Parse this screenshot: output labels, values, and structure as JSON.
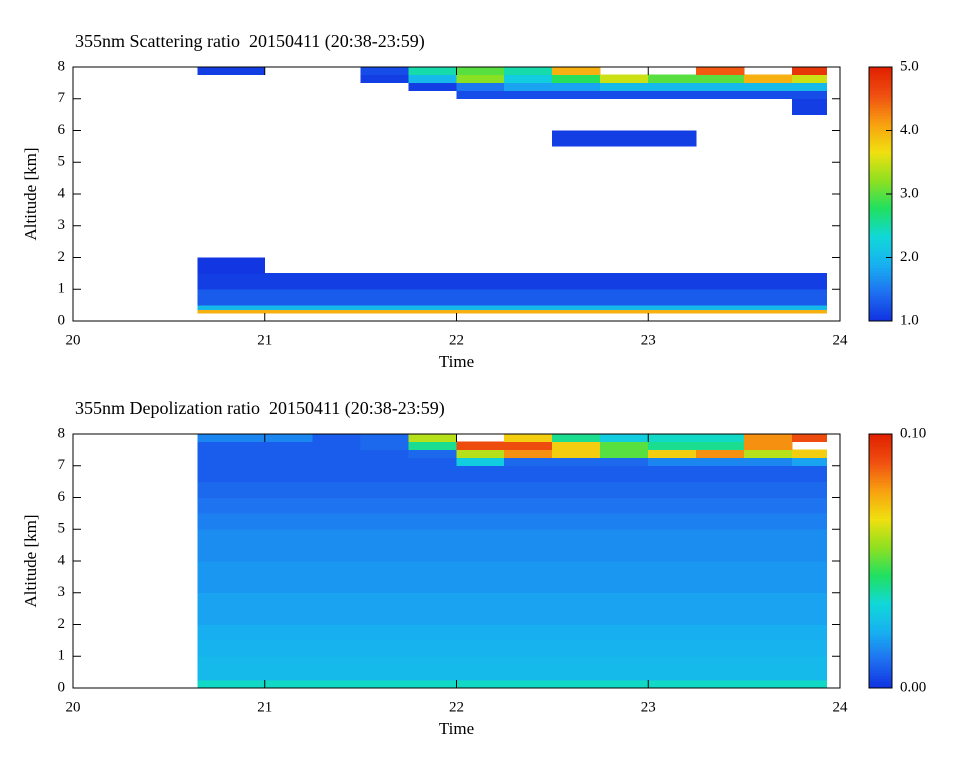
{
  "chart_data": [
    {
      "type": "heatmap",
      "title": "355nm Scattering ratio  20150411 (20:38-23:59)",
      "xlabel": "Time",
      "ylabel": "Altitude [km]",
      "x": [
        20.65,
        21,
        21.25,
        21.5,
        21.75,
        22,
        22.25,
        22.5,
        22.75,
        23,
        23.25,
        23.5,
        23.75,
        23.93
      ],
      "y": [
        0,
        0.25,
        0.35,
        0.5,
        1,
        1.5,
        2,
        3,
        4,
        5,
        5.5,
        6,
        6.5,
        7,
        7.25,
        7.5,
        7.75,
        8
      ],
      "values": [
        [
          null,
          null,
          null,
          null,
          null,
          null,
          null,
          null,
          null,
          null,
          null,
          null,
          null
        ],
        [
          4.0,
          4.0,
          4.0,
          4.0,
          4.0,
          4.0,
          4.0,
          4.0,
          4.0,
          4.0,
          4.0,
          4.0,
          4.0
        ],
        [
          2.0,
          2.0,
          2.0,
          2.0,
          2.0,
          2.0,
          2.0,
          2.0,
          2.0,
          2.0,
          2.0,
          2.0,
          2.0
        ],
        [
          1.3,
          1.3,
          1.3,
          1.3,
          1.3,
          1.3,
          1.3,
          1.3,
          1.3,
          1.3,
          1.3,
          1.3,
          1.3
        ],
        [
          1.1,
          1.1,
          1.1,
          1.1,
          1.1,
          1.1,
          1.1,
          1.1,
          1.1,
          1.1,
          1.1,
          1.1,
          1.1
        ],
        [
          1.05,
          null,
          null,
          null,
          null,
          null,
          null,
          null,
          null,
          null,
          null,
          null,
          null
        ],
        [
          null,
          null,
          null,
          null,
          null,
          null,
          null,
          null,
          null,
          null,
          null,
          null,
          null
        ],
        [
          null,
          null,
          null,
          null,
          null,
          null,
          null,
          null,
          null,
          null,
          null,
          null,
          null
        ],
        [
          null,
          null,
          null,
          null,
          null,
          null,
          null,
          null,
          null,
          null,
          null,
          null,
          null
        ],
        [
          null,
          null,
          null,
          null,
          null,
          null,
          null,
          null,
          null,
          null,
          null,
          null,
          null
        ],
        [
          null,
          null,
          null,
          null,
          null,
          null,
          null,
          1.1,
          1.1,
          1.1,
          null,
          null,
          null
        ],
        [
          null,
          null,
          null,
          null,
          null,
          null,
          null,
          null,
          null,
          null,
          null,
          null,
          null
        ],
        [
          null,
          null,
          null,
          null,
          null,
          null,
          null,
          null,
          null,
          null,
          null,
          null,
          1.1
        ],
        [
          null,
          null,
          null,
          null,
          null,
          1.2,
          1.2,
          1.2,
          1.2,
          1.2,
          1.2,
          1.2,
          1.2
        ],
        [
          null,
          null,
          null,
          null,
          1.1,
          1.5,
          1.8,
          1.8,
          2.0,
          2.0,
          2.0,
          2.0,
          2.0
        ],
        [
          null,
          null,
          null,
          1.1,
          2.0,
          3.2,
          2.2,
          2.8,
          3.5,
          3.0,
          3.0,
          4.0,
          3.5
        ],
        [
          1.1,
          null,
          null,
          1.2,
          2.5,
          3.0,
          2.5,
          4.0,
          null,
          null,
          4.5,
          null,
          4.8
        ]
      ],
      "xlim": [
        20,
        24
      ],
      "ylim": [
        0,
        8
      ],
      "xticks": [
        20,
        21,
        22,
        23,
        24
      ],
      "yticks": [
        0,
        1,
        2,
        3,
        4,
        5,
        6,
        7,
        8
      ],
      "clim": [
        1,
        5
      ],
      "colorbar_ticks": [
        {
          "value": 1,
          "label": "1.0"
        },
        {
          "value": 2,
          "label": "2.0"
        },
        {
          "value": 3,
          "label": "3.0"
        },
        {
          "value": 4,
          "label": "4.0"
        },
        {
          "value": 5,
          "label": "5.0"
        }
      ],
      "colormap": [
        "#1030e0",
        "#1e6ff0",
        "#18b0f0",
        "#10d8d8",
        "#20e060",
        "#90e020",
        "#f0e010",
        "#f8a010",
        "#f05010",
        "#e02000"
      ]
    },
    {
      "type": "heatmap",
      "title": "355nm Depolization ratio  20150411 (20:38-23:59)",
      "xlabel": "Time",
      "ylabel": "Altitude [km]",
      "x": [
        20.65,
        21,
        21.25,
        21.5,
        21.75,
        22,
        22.25,
        22.5,
        22.75,
        23,
        23.25,
        23.5,
        23.75,
        23.93
      ],
      "y": [
        0,
        0.25,
        0.35,
        0.5,
        1,
        1.5,
        2,
        3,
        4,
        5,
        5.5,
        6,
        6.5,
        7,
        7.25,
        7.5,
        7.75,
        8
      ],
      "values": [
        [
          0.035,
          0.035,
          0.035,
          0.035,
          0.035,
          0.035,
          0.035,
          0.035,
          0.035,
          0.035,
          0.035,
          0.035,
          0.035
        ],
        [
          0.025,
          0.025,
          0.025,
          0.025,
          0.025,
          0.025,
          0.025,
          0.025,
          0.025,
          0.025,
          0.025,
          0.025,
          0.025
        ],
        [
          0.025,
          0.025,
          0.025,
          0.025,
          0.025,
          0.025,
          0.025,
          0.025,
          0.025,
          0.025,
          0.025,
          0.025,
          0.025
        ],
        [
          0.025,
          0.025,
          0.025,
          0.025,
          0.025,
          0.025,
          0.025,
          0.025,
          0.025,
          0.025,
          0.025,
          0.025,
          0.025
        ],
        [
          0.023,
          0.023,
          0.023,
          0.023,
          0.023,
          0.023,
          0.023,
          0.023,
          0.023,
          0.023,
          0.023,
          0.023,
          0.023
        ],
        [
          0.022,
          0.022,
          0.022,
          0.022,
          0.022,
          0.022,
          0.022,
          0.022,
          0.022,
          0.022,
          0.022,
          0.022,
          0.022
        ],
        [
          0.02,
          0.02,
          0.02,
          0.02,
          0.02,
          0.02,
          0.02,
          0.02,
          0.02,
          0.02,
          0.02,
          0.02,
          0.02
        ],
        [
          0.018,
          0.018,
          0.018,
          0.018,
          0.018,
          0.018,
          0.018,
          0.018,
          0.018,
          0.018,
          0.018,
          0.018,
          0.018
        ],
        [
          0.016,
          0.016,
          0.016,
          0.016,
          0.016,
          0.016,
          0.016,
          0.016,
          0.016,
          0.016,
          0.016,
          0.016,
          0.016
        ],
        [
          0.014,
          0.014,
          0.014,
          0.014,
          0.014,
          0.014,
          0.014,
          0.014,
          0.014,
          0.014,
          0.014,
          0.014,
          0.014
        ],
        [
          0.012,
          0.012,
          0.012,
          0.012,
          0.012,
          0.012,
          0.012,
          0.012,
          0.012,
          0.012,
          0.012,
          0.012,
          0.012
        ],
        [
          0.01,
          0.01,
          0.01,
          0.01,
          0.01,
          0.01,
          0.01,
          0.01,
          0.01,
          0.01,
          0.01,
          0.01,
          0.01
        ],
        [
          0.008,
          0.008,
          0.008,
          0.008,
          0.008,
          0.008,
          0.008,
          0.008,
          0.008,
          0.008,
          0.008,
          0.008,
          0.008
        ],
        [
          0.008,
          0.008,
          0.008,
          0.008,
          0.008,
          0.03,
          0.01,
          0.01,
          0.01,
          0.015,
          0.015,
          0.015,
          0.02
        ],
        [
          0.008,
          0.008,
          0.008,
          0.008,
          0.01,
          0.06,
          0.08,
          0.07,
          0.05,
          0.07,
          0.08,
          0.06,
          0.07
        ],
        [
          0.008,
          0.008,
          0.008,
          0.01,
          0.04,
          0.09,
          0.09,
          0.07,
          0.05,
          0.04,
          0.04,
          0.08,
          null
        ],
        [
          0.015,
          0.015,
          0.008,
          0.01,
          0.06,
          null,
          0.07,
          0.04,
          0.03,
          0.035,
          0.035,
          0.08,
          0.09
        ]
      ],
      "xlim": [
        20,
        24
      ],
      "ylim": [
        0,
        8
      ],
      "xticks": [
        20,
        21,
        22,
        23,
        24
      ],
      "yticks": [
        0,
        1,
        2,
        3,
        4,
        5,
        6,
        7,
        8
      ],
      "clim": [
        0,
        0.1
      ],
      "colorbar_ticks": [
        {
          "value": 0,
          "label": "0.00"
        },
        {
          "value": 0.1,
          "label": "0.10"
        }
      ],
      "colormap": [
        "#1030e0",
        "#1e6ff0",
        "#18b0f0",
        "#10d8d8",
        "#20e060",
        "#90e020",
        "#f0e010",
        "#f8a010",
        "#f05010",
        "#e02000"
      ]
    }
  ]
}
